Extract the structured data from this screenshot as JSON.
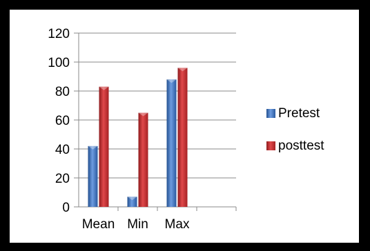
{
  "chart_data": {
    "type": "bar",
    "categories": [
      "Mean",
      "Min",
      "Max"
    ],
    "series": [
      {
        "name": "Pretest",
        "values": [
          42,
          7,
          88
        ],
        "color": "#3f6fc0"
      },
      {
        "name": "posttest",
        "values": [
          83,
          65,
          96
        ],
        "color": "#c0282a"
      }
    ],
    "yticks": [
      "0",
      "20",
      "40",
      "60",
      "80",
      "100",
      "120"
    ],
    "ylim": [
      0,
      120
    ],
    "grid": true,
    "legend": "right"
  }
}
